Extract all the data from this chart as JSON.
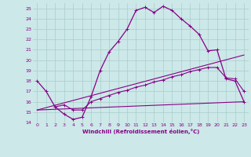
{
  "xlabel": "Windchill (Refroidissement éolien,°C)",
  "bg_color": "#cce8e8",
  "line_color": "#880088",
  "xlim": [
    -0.5,
    23.5
  ],
  "ylim": [
    14,
    25.5
  ],
  "yticks": [
    14,
    15,
    16,
    17,
    18,
    19,
    20,
    21,
    22,
    23,
    24,
    25
  ],
  "xticks": [
    0,
    1,
    2,
    3,
    4,
    5,
    6,
    7,
    8,
    9,
    10,
    11,
    12,
    13,
    14,
    15,
    16,
    17,
    18,
    19,
    20,
    21,
    22,
    23
  ],
  "line1_x": [
    0,
    1,
    2,
    3,
    4,
    5,
    6,
    7,
    8,
    9,
    10,
    11,
    12,
    13,
    14,
    15,
    16,
    17,
    18,
    19,
    20,
    21,
    22,
    23
  ],
  "line1_y": [
    18.0,
    17.0,
    15.5,
    14.8,
    14.3,
    14.5,
    16.5,
    19.0,
    20.8,
    21.8,
    23.0,
    24.8,
    25.1,
    24.6,
    25.2,
    24.8,
    24.0,
    23.3,
    22.5,
    20.9,
    21.0,
    18.2,
    18.0,
    16.0
  ],
  "line2_x": [
    2,
    3,
    4,
    5,
    6,
    7,
    8,
    9,
    10,
    11,
    12,
    13,
    14,
    15,
    16,
    17,
    18,
    19,
    20,
    21,
    22,
    23
  ],
  "line2_y": [
    15.5,
    15.7,
    15.2,
    15.2,
    16.0,
    16.3,
    16.6,
    16.9,
    17.1,
    17.4,
    17.6,
    17.9,
    18.1,
    18.4,
    18.6,
    18.9,
    19.1,
    19.3,
    19.3,
    18.3,
    18.2,
    17.0
  ],
  "line3_x": [
    0,
    23
  ],
  "line3_y": [
    15.2,
    16.0
  ],
  "line4_x": [
    0,
    23
  ],
  "line4_y": [
    15.2,
    20.5
  ]
}
